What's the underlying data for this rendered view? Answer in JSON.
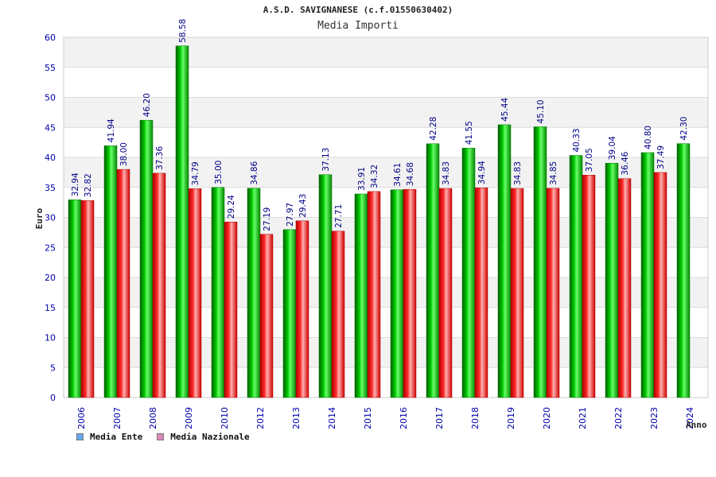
{
  "chart_data": {
    "type": "bar",
    "title": "A.S.D. SAVIGNANESE (c.f.01550630402)",
    "subtitle": "Media Importi",
    "xlabel": "Anno",
    "ylabel": "Euro",
    "ylim": [
      0,
      60
    ],
    "yticks": [
      "0",
      "5",
      "10",
      "15",
      "20",
      "25",
      "30",
      "35",
      "40",
      "45",
      "50",
      "55",
      "60"
    ],
    "categories": [
      "2006",
      "2007",
      "2008",
      "2009",
      "2010",
      "2012",
      "2013",
      "2014",
      "2015",
      "2016",
      "2017",
      "2018",
      "2019",
      "2020",
      "2021",
      "2022",
      "2023",
      "2024"
    ],
    "series": [
      {
        "name": "Media Ente",
        "color": "#00aa00",
        "values": [
          32.94,
          41.94,
          46.2,
          58.58,
          35.0,
          34.86,
          27.97,
          37.13,
          33.91,
          34.61,
          42.28,
          41.55,
          45.44,
          45.1,
          40.33,
          39.04,
          40.8,
          42.3
        ],
        "labels": [
          "32.94",
          "41.94",
          "46.20",
          "58.58",
          "35.00",
          "34.86",
          "27.97",
          "37.13",
          "33.91",
          "34.61",
          "42.28",
          "41.55",
          "45.44",
          "45.10",
          "40.33",
          "39.04",
          "40.80",
          "42.30"
        ]
      },
      {
        "name": "Media Nazionale",
        "color": "#ee2222",
        "values": [
          32.82,
          38.0,
          37.36,
          34.79,
          29.24,
          27.19,
          29.43,
          27.71,
          34.32,
          34.68,
          34.83,
          34.94,
          34.83,
          34.85,
          37.05,
          36.46,
          37.49,
          null
        ],
        "labels": [
          "32.82",
          "38.00",
          "37.36",
          "34.79",
          "29.24",
          "27.19",
          "29.43",
          "27.71",
          "34.32",
          "34.68",
          "34.83",
          "34.94",
          "34.83",
          "34.85",
          "37.05",
          "36.46",
          "37.49",
          null
        ]
      }
    ],
    "legend": {
      "placement": "bottom-left",
      "entries": [
        {
          "name": "Media Ente",
          "color": "#66aaee"
        },
        {
          "name": "Media Nazionale",
          "color": "#dd88bb"
        }
      ]
    },
    "grid": true,
    "band_colors": [
      "#ffffff",
      "#f2f2f2"
    ]
  }
}
